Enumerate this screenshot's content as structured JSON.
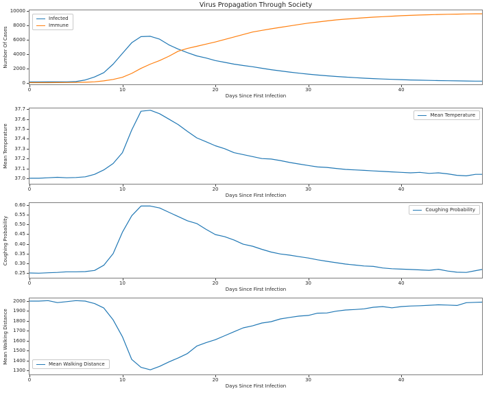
{
  "figure": {
    "title": "Virus Propagation Through Society"
  },
  "chart_data": [
    {
      "id": "cases",
      "type": "line",
      "title": "Virus Propagation Through Society",
      "xlabel": "Days Since First Infection",
      "ylabel": "Number Of Cases",
      "xlim": [
        0,
        48.7
      ],
      "ylim": [
        -240,
        10144
      ],
      "grid": false,
      "legend_position": "top-left",
      "xticks": [
        0,
        10,
        20,
        30,
        40
      ],
      "xtick_labels": [
        "0",
        "10",
        "20",
        "30",
        "40"
      ],
      "yticks": [
        0,
        2000,
        4000,
        6000,
        8000,
        10000
      ],
      "ytick_labels": [
        "0",
        "2000",
        "4000",
        "6000",
        "8000",
        "10000"
      ],
      "x": [
        0,
        1,
        2,
        3,
        4,
        5,
        6,
        7,
        8,
        9,
        10,
        11,
        12,
        13,
        14,
        15,
        16,
        17,
        18,
        19,
        20,
        21,
        22,
        23,
        24,
        25,
        26,
        27,
        28,
        29,
        30,
        31,
        32,
        33,
        34,
        35,
        36,
        37,
        38,
        39,
        40,
        41,
        42,
        43,
        44,
        45,
        46,
        47,
        48,
        48.7
      ],
      "series": [
        {
          "name": "Infected",
          "color": "#1f77b4",
          "values": [
            100,
            100,
            105,
            110,
            120,
            150,
            380,
            800,
            1400,
            2600,
            4100,
            5600,
            6450,
            6500,
            6100,
            5300,
            4700,
            4200,
            3750,
            3450,
            3100,
            2850,
            2600,
            2400,
            2230,
            2020,
            1820,
            1640,
            1480,
            1330,
            1190,
            1070,
            960,
            870,
            780,
            700,
            630,
            570,
            510,
            460,
            420,
            380,
            350,
            320,
            290,
            270,
            250,
            230,
            215,
            210
          ]
        },
        {
          "name": "Immune",
          "color": "#ff7f0e",
          "values": [
            0,
            0,
            5,
            10,
            15,
            25,
            60,
            120,
            250,
            450,
            750,
            1300,
            2000,
            2600,
            3100,
            3700,
            4400,
            4800,
            5100,
            5400,
            5700,
            6050,
            6400,
            6750,
            7100,
            7330,
            7550,
            7750,
            7950,
            8150,
            8350,
            8500,
            8650,
            8800,
            8900,
            9000,
            9100,
            9180,
            9250,
            9320,
            9380,
            9430,
            9480,
            9520,
            9560,
            9590,
            9610,
            9630,
            9650,
            9655
          ]
        }
      ]
    },
    {
      "id": "temperature",
      "type": "line",
      "xlabel": "Days Since First Infection",
      "ylabel": "Mean Temperature",
      "xlim": [
        0,
        48.7
      ],
      "ylim": [
        36.944,
        37.709
      ],
      "grid": false,
      "legend_position": "top-right",
      "xticks": [
        0,
        10,
        20,
        30,
        40
      ],
      "xtick_labels": [
        "0",
        "10",
        "20",
        "30",
        "40"
      ],
      "yticks": [
        37.0,
        37.1,
        37.2,
        37.3,
        37.4,
        37.5,
        37.6,
        37.7
      ],
      "ytick_labels": [
        "37.0",
        "37.1",
        "37.2",
        "37.3",
        "37.4",
        "37.5",
        "37.6",
        "37.7"
      ],
      "x": [
        0,
        1,
        2,
        3,
        4,
        5,
        6,
        7,
        8,
        9,
        10,
        11,
        12,
        13,
        14,
        15,
        16,
        17,
        18,
        19,
        20,
        21,
        22,
        23,
        24,
        25,
        26,
        27,
        28,
        29,
        30,
        31,
        32,
        33,
        34,
        35,
        36,
        37,
        38,
        39,
        40,
        41,
        42,
        43,
        44,
        45,
        46,
        47,
        48,
        48.7
      ],
      "series": [
        {
          "name": "Mean Temperature",
          "color": "#1f77b4",
          "values": [
            37.0,
            37.0,
            37.005,
            37.01,
            37.005,
            37.008,
            37.015,
            37.04,
            37.085,
            37.15,
            37.26,
            37.49,
            37.68,
            37.69,
            37.655,
            37.6,
            37.545,
            37.475,
            37.41,
            37.37,
            37.33,
            37.3,
            37.26,
            37.24,
            37.22,
            37.2,
            37.195,
            37.18,
            37.16,
            37.145,
            37.13,
            37.115,
            37.11,
            37.1,
            37.09,
            37.085,
            37.08,
            37.075,
            37.07,
            37.065,
            37.06,
            37.055,
            37.06,
            37.05,
            37.055,
            37.045,
            37.03,
            37.025,
            37.04,
            37.04
          ]
        }
      ]
    },
    {
      "id": "coughing",
      "type": "line",
      "xlabel": "Days Since First Infection",
      "ylabel": "Coughing Probability",
      "xlim": [
        0,
        48.7
      ],
      "ylim": [
        0.2253,
        0.6106
      ],
      "grid": false,
      "legend_position": "top-right",
      "xticks": [
        0,
        10,
        20,
        30,
        40
      ],
      "xtick_labels": [
        "0",
        "10",
        "20",
        "30",
        "40"
      ],
      "yticks": [
        0.25,
        0.3,
        0.35,
        0.4,
        0.45,
        0.5,
        0.55,
        0.6
      ],
      "ytick_labels": [
        "0.25",
        "0.30",
        "0.35",
        "0.40",
        "0.45",
        "0.50",
        "0.55",
        "0.60"
      ],
      "x": [
        0,
        1,
        2,
        3,
        4,
        5,
        6,
        7,
        8,
        9,
        10,
        11,
        12,
        13,
        14,
        15,
        16,
        17,
        18,
        19,
        20,
        21,
        22,
        23,
        24,
        25,
        26,
        27,
        28,
        29,
        30,
        31,
        32,
        33,
        34,
        35,
        36,
        37,
        38,
        39,
        40,
        41,
        42,
        43,
        44,
        45,
        46,
        47,
        48,
        48.7
      ],
      "series": [
        {
          "name": "Coughing Probability",
          "color": "#1f77b4",
          "values": [
            0.25,
            0.249,
            0.251,
            0.253,
            0.256,
            0.256,
            0.257,
            0.263,
            0.29,
            0.35,
            0.46,
            0.545,
            0.595,
            0.595,
            0.585,
            0.563,
            0.541,
            0.519,
            0.505,
            0.475,
            0.448,
            0.437,
            0.42,
            0.398,
            0.388,
            0.372,
            0.358,
            0.348,
            0.342,
            0.334,
            0.327,
            0.318,
            0.31,
            0.303,
            0.296,
            0.291,
            0.286,
            0.284,
            0.276,
            0.272,
            0.27,
            0.268,
            0.266,
            0.264,
            0.269,
            0.26,
            0.254,
            0.253,
            0.262,
            0.268
          ]
        }
      ]
    },
    {
      "id": "walking",
      "type": "line",
      "xlabel": "Days Since First Infection",
      "ylabel": "Mean Walking Distance",
      "xlim": [
        0,
        48.7
      ],
      "ylim": [
        1258,
        2028
      ],
      "grid": false,
      "legend_position": "bottom-left",
      "xticks": [
        0,
        10,
        20,
        30,
        40
      ],
      "xtick_labels": [
        "0",
        "10",
        "20",
        "30",
        "40"
      ],
      "yticks": [
        1300,
        1400,
        1500,
        1600,
        1700,
        1800,
        1900,
        2000
      ],
      "ytick_labels": [
        "1300",
        "1400",
        "1500",
        "1600",
        "1700",
        "1800",
        "1900",
        "2000"
      ],
      "x": [
        0,
        1,
        2,
        3,
        4,
        5,
        6,
        7,
        8,
        9,
        10,
        11,
        12,
        13,
        14,
        15,
        16,
        17,
        18,
        19,
        20,
        21,
        22,
        23,
        24,
        25,
        26,
        27,
        28,
        29,
        30,
        31,
        32,
        33,
        34,
        35,
        36,
        37,
        38,
        39,
        40,
        41,
        42,
        43,
        44,
        45,
        46,
        47,
        48,
        48.7
      ],
      "series": [
        {
          "name": "Mean Walking Distance",
          "color": "#1f77b4",
          "values": [
            2000,
            2000,
            2005,
            1985,
            1995,
            2005,
            2000,
            1975,
            1930,
            1810,
            1640,
            1410,
            1330,
            1305,
            1340,
            1385,
            1425,
            1470,
            1545,
            1580,
            1610,
            1650,
            1690,
            1730,
            1750,
            1778,
            1792,
            1820,
            1835,
            1848,
            1855,
            1878,
            1880,
            1898,
            1910,
            1915,
            1922,
            1938,
            1945,
            1932,
            1945,
            1950,
            1953,
            1958,
            1963,
            1960,
            1956,
            1984,
            1988,
            1990
          ]
        }
      ]
    }
  ]
}
